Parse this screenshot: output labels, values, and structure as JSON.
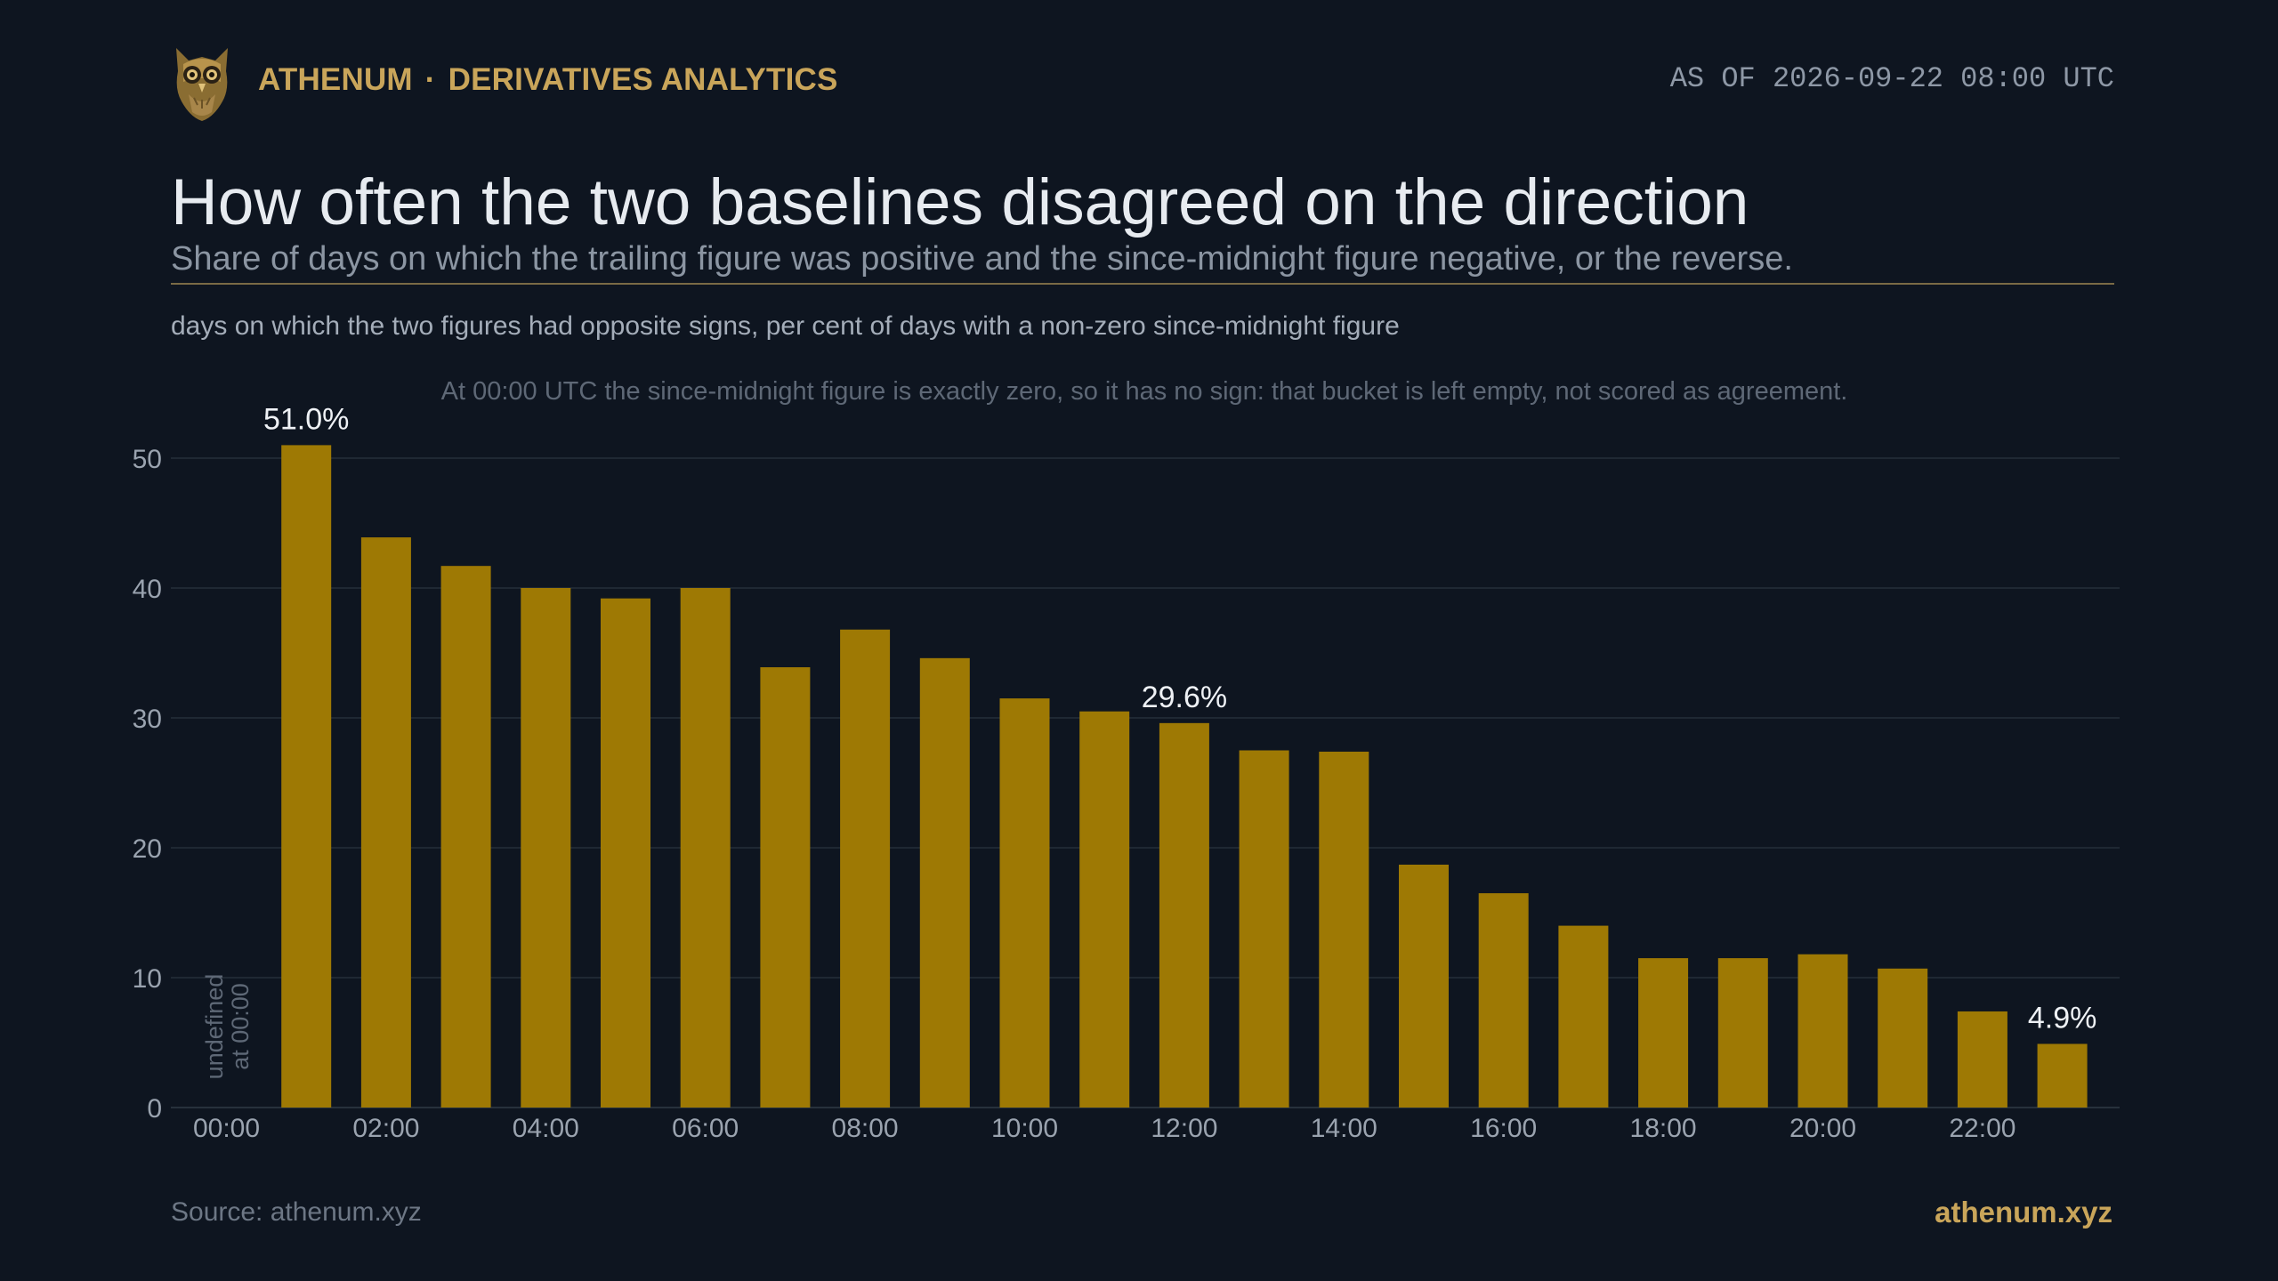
{
  "header": {
    "brand": "ATHENUM",
    "separator": "·",
    "section": "DERIVATIVES ANALYTICS",
    "as_of": "AS OF 2026-09-22 08:00 UTC",
    "logo_icon": "owl-logo-icon"
  },
  "title": "How often the two baselines disagreed on the direction",
  "subtitle": "Share of days on which the trailing figure was positive and the since-midnight figure negative, or the reverse.",
  "caption": "days on which the two figures had opposite signs, per cent of days with a non-zero since-midnight figure",
  "footer": {
    "source": "Source: athenum.xyz",
    "site": "athenum.xyz"
  },
  "colors": {
    "background": "#0e1520",
    "bar": "#9e7904",
    "accent": "#c9a55a",
    "grid": "#1f2833"
  },
  "chart_data": {
    "type": "bar",
    "categories": [
      "00:00",
      "01:00",
      "02:00",
      "03:00",
      "04:00",
      "05:00",
      "06:00",
      "07:00",
      "08:00",
      "09:00",
      "10:00",
      "11:00",
      "12:00",
      "13:00",
      "14:00",
      "15:00",
      "16:00",
      "17:00",
      "18:00",
      "19:00",
      "20:00",
      "21:00",
      "22:00",
      "23:00"
    ],
    "values": [
      null,
      51.0,
      43.9,
      41.7,
      40.0,
      39.2,
      40.0,
      33.9,
      36.8,
      34.6,
      31.5,
      30.5,
      29.6,
      27.5,
      27.4,
      18.7,
      16.5,
      14.0,
      11.5,
      11.5,
      11.8,
      10.7,
      7.4,
      4.9
    ],
    "x_tick_labels": [
      "00:00",
      "02:00",
      "04:00",
      "06:00",
      "08:00",
      "10:00",
      "12:00",
      "14:00",
      "16:00",
      "18:00",
      "20:00",
      "22:00"
    ],
    "y_ticks": [
      0,
      10,
      20,
      30,
      40,
      50
    ],
    "ylim": [
      0,
      55
    ],
    "grid": true,
    "data_labels": [
      {
        "category": "01:00",
        "text": "51.0%"
      },
      {
        "category": "12:00",
        "text": "29.6%"
      },
      {
        "category": "23:00",
        "text": "4.9%"
      }
    ],
    "annotations": {
      "top_note": "At 00:00 UTC the since-midnight figure is exactly zero, so it has no sign: that bucket is left empty, not scored as agreement.",
      "empty_bucket_line1": "undefined",
      "empty_bucket_line2": "at 00:00"
    }
  }
}
